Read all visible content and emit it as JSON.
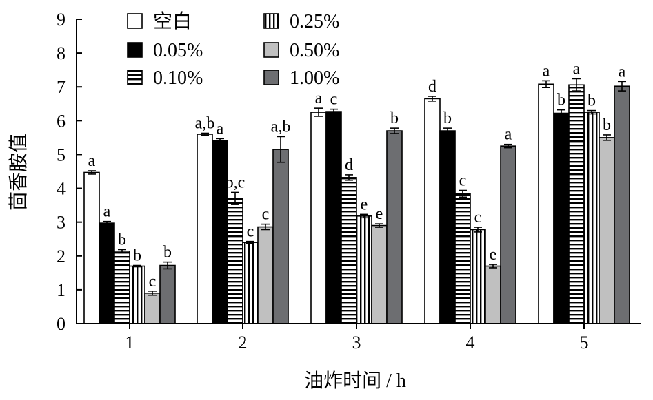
{
  "chart_data": {
    "type": "bar",
    "title": "",
    "xlabel": "油炸时间 / h",
    "ylabel": "茴香胺值",
    "ylim": [
      0,
      9
    ],
    "yticks": [
      0,
      1,
      2,
      3,
      4,
      5,
      6,
      7,
      8,
      9
    ],
    "categories": [
      "1",
      "2",
      "3",
      "4",
      "5"
    ],
    "grid": false,
    "legend_position": "top-left",
    "series": [
      {
        "name": "空白",
        "pattern": "white",
        "values": [
          4.47,
          5.6,
          6.25,
          6.65,
          7.08
        ],
        "errors": [
          0.05,
          0.03,
          0.12,
          0.07,
          0.1
        ],
        "labels": [
          "a",
          "a,b",
          "a",
          "d",
          "a"
        ]
      },
      {
        "name": "0.05%",
        "pattern": "black",
        "values": [
          2.97,
          5.4,
          6.27,
          5.7,
          6.22
        ],
        "errors": [
          0.05,
          0.07,
          0.07,
          0.08,
          0.1
        ],
        "labels": [
          "a",
          "a",
          "c",
          "b",
          "b"
        ]
      },
      {
        "name": "0.10%",
        "pattern": "horizontal",
        "values": [
          2.14,
          3.7,
          4.32,
          3.84,
          7.06
        ],
        "errors": [
          0.05,
          0.18,
          0.08,
          0.1,
          0.18
        ],
        "labels": [
          "b",
          "b,c",
          "d",
          "c",
          "a"
        ]
      },
      {
        "name": "0.25%",
        "pattern": "vertical",
        "values": [
          1.7,
          2.4,
          3.18,
          2.78,
          6.25
        ],
        "errors": [
          0.02,
          0.03,
          0.05,
          0.07,
          0.05
        ],
        "labels": [
          "b",
          "c",
          "e",
          "c",
          "b"
        ]
      },
      {
        "name": "0.50%",
        "pattern": "lightgray",
        "values": [
          0.9,
          2.86,
          2.9,
          1.7,
          5.5
        ],
        "errors": [
          0.06,
          0.08,
          0.05,
          0.05,
          0.08
        ],
        "labels": [
          "c",
          "c",
          "e",
          "e",
          "b"
        ]
      },
      {
        "name": "1.00%",
        "pattern": "darkgray",
        "values": [
          1.72,
          5.15,
          5.7,
          5.25,
          7.02
        ],
        "errors": [
          0.1,
          0.38,
          0.08,
          0.05,
          0.14
        ],
        "labels": [
          "b",
          "a,b",
          "b",
          "a",
          "a"
        ]
      }
    ]
  },
  "colors": {
    "axis": "#000000",
    "white_fill": "#ffffff",
    "black_fill": "#000000",
    "lightgray_fill": "#c0c0c0",
    "darkgray_fill": "#6d6e71"
  }
}
